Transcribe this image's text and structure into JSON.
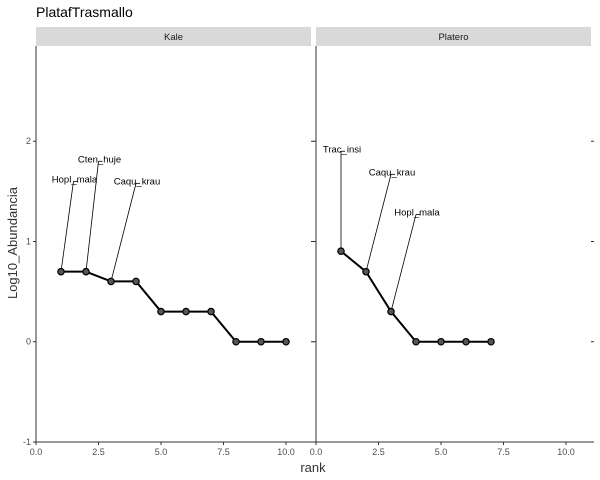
{
  "chart_data": {
    "type": "line",
    "title": "PlatafTrasmallo",
    "xlabel": "rank",
    "ylabel": "Log10_Abundancia",
    "xlim": [
      0,
      11
    ],
    "ylim": [
      -1,
      2.95
    ],
    "x_ticks": [
      0,
      2.5,
      5,
      7.5,
      10
    ],
    "x_tick_labels": [
      "0.0",
      "2.5",
      "5.0",
      "7.5",
      "10.0"
    ],
    "y_ticks": [
      -1,
      0,
      1,
      2
    ],
    "y_tick_labels": [
      "-1",
      "0",
      "1",
      "2"
    ],
    "grid": false,
    "panels": [
      {
        "name": "Kale",
        "points": [
          {
            "x": 1,
            "y": 0.699
          },
          {
            "x": 2,
            "y": 0.699
          },
          {
            "x": 3,
            "y": 0.602
          },
          {
            "x": 4,
            "y": 0.602
          },
          {
            "x": 5,
            "y": 0.301
          },
          {
            "x": 6,
            "y": 0.301
          },
          {
            "x": 7,
            "y": 0.301
          },
          {
            "x": 8,
            "y": 0
          },
          {
            "x": 9,
            "y": 0
          },
          {
            "x": 10,
            "y": 0
          }
        ],
        "labels": [
          {
            "text": "Hopl_mala",
            "rank": 1,
            "lx": 1.5,
            "ly": 1.6
          },
          {
            "text": "Cten_huje",
            "rank": 2,
            "lx": 2.5,
            "ly": 1.8
          },
          {
            "text": "Caqu_krau",
            "rank": 3,
            "lx": 4.0,
            "ly": 1.58
          }
        ]
      },
      {
        "name": "Platero",
        "points": [
          {
            "x": 1,
            "y": 0.903
          },
          {
            "x": 2,
            "y": 0.699
          },
          {
            "x": 3,
            "y": 0.301
          },
          {
            "x": 4,
            "y": 0
          },
          {
            "x": 5,
            "y": 0
          },
          {
            "x": 6,
            "y": 0
          },
          {
            "x": 7,
            "y": 0
          }
        ],
        "labels": [
          {
            "text": "Trac_insi",
            "rank": 1,
            "lx": 1.0,
            "ly": 1.9
          },
          {
            "text": "Caqu_krau",
            "rank": 2,
            "lx": 3.0,
            "ly": 1.67
          },
          {
            "text": "Hopl_mala",
            "rank": 3,
            "lx": 4.0,
            "ly": 1.27
          }
        ]
      }
    ]
  }
}
